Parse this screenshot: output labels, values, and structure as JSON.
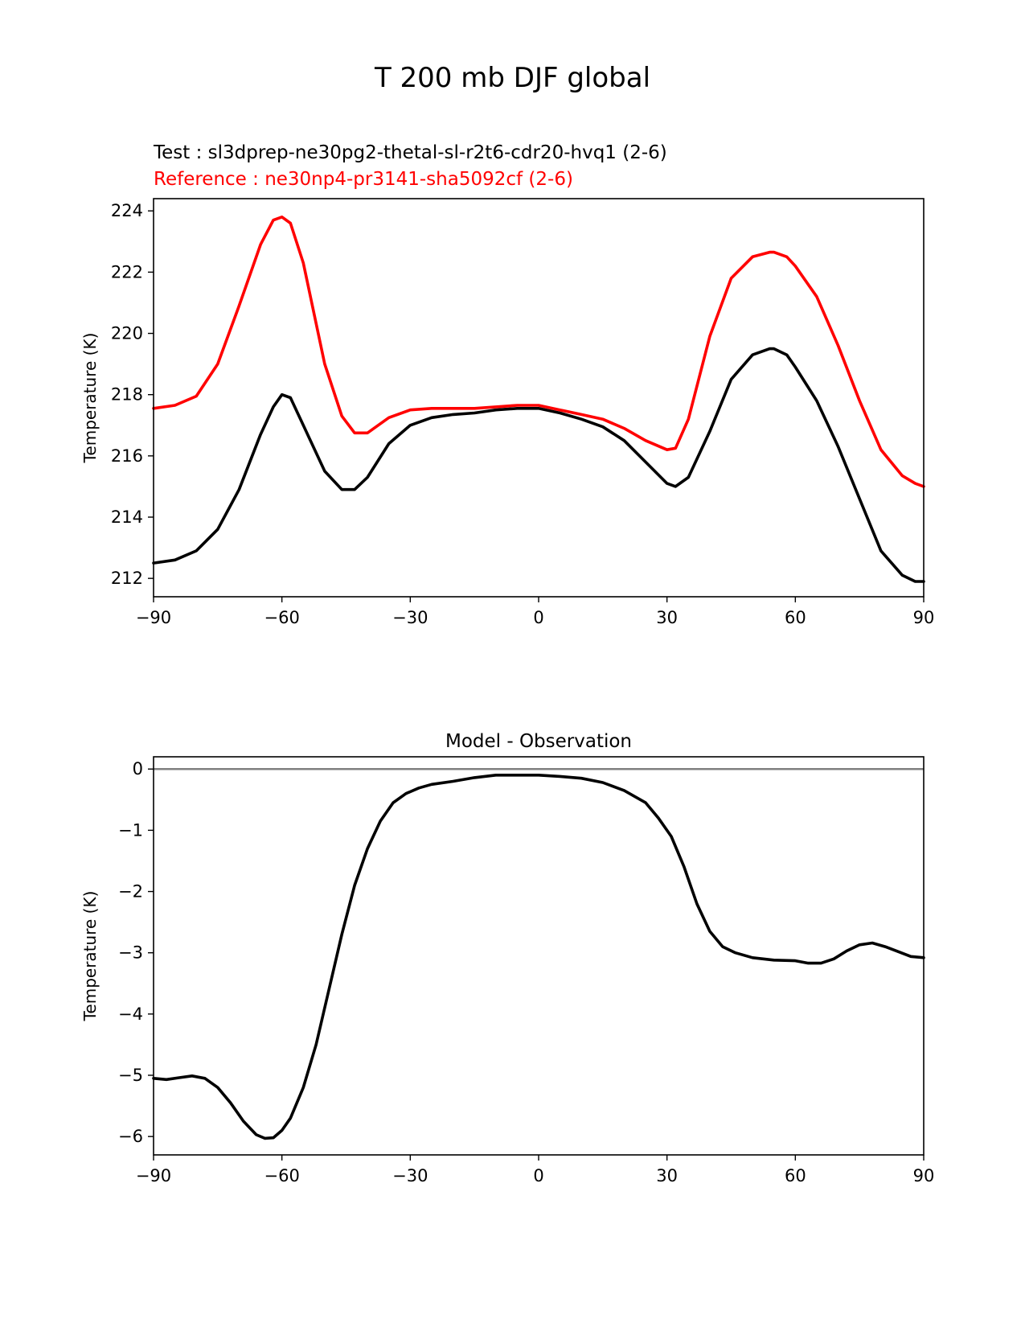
{
  "figure": {
    "title": "T 200 mb DJF global"
  },
  "chart_data": [
    {
      "type": "line",
      "title": "",
      "subtitle_lines": [
        {
          "text": "Test : sl3dprep-ne30pg2-thetal-sl-r2t6-cdr20-hvq1 (2-6)",
          "color": "#000000"
        },
        {
          "text": "Reference : ne30np4-pr3141-sha5092cf (2-6)",
          "color": "#ff0000"
        }
      ],
      "xlabel": "",
      "ylabel": "Temperature (K)",
      "xlim": [
        -90,
        90
      ],
      "ylim": [
        211.4,
        224.4
      ],
      "xticks": [
        -90,
        -60,
        -30,
        0,
        30,
        60,
        90
      ],
      "xtick_labels": [
        "−90",
        "−60",
        "−30",
        "0",
        "30",
        "60",
        "90"
      ],
      "yticks": [
        212,
        214,
        216,
        218,
        220,
        222,
        224
      ],
      "ytick_labels": [
        "212",
        "214",
        "216",
        "218",
        "220",
        "222",
        "224"
      ],
      "grid": false,
      "series": [
        {
          "name": "Test : sl3dprep-ne30pg2-thetal-sl-r2t6-cdr20-hvq1 (2-6)",
          "color": "#000000",
          "x": [
            -90,
            -85,
            -80,
            -75,
            -70,
            -65,
            -62,
            -60,
            -58,
            -55,
            -50,
            -46,
            -43,
            -40,
            -35,
            -30,
            -25,
            -20,
            -15,
            -10,
            -5,
            0,
            5,
            10,
            15,
            20,
            25,
            30,
            32,
            35,
            40,
            45,
            50,
            54,
            55,
            58,
            60,
            65,
            70,
            75,
            80,
            85,
            88,
            90
          ],
          "y": [
            212.5,
            212.6,
            212.9,
            213.6,
            214.9,
            216.7,
            217.6,
            218.0,
            217.9,
            217.0,
            215.5,
            214.9,
            214.9,
            215.3,
            216.4,
            217.0,
            217.25,
            217.35,
            217.4,
            217.5,
            217.55,
            217.55,
            217.4,
            217.2,
            216.95,
            216.5,
            215.8,
            215.1,
            215.0,
            215.3,
            216.8,
            218.5,
            219.3,
            219.5,
            219.5,
            219.3,
            218.9,
            217.8,
            216.3,
            214.6,
            212.9,
            212.1,
            211.9,
            211.9
          ]
        },
        {
          "name": "Reference : ne30np4-pr3141-sha5092cf (2-6)",
          "color": "#ff0000",
          "x": [
            -90,
            -85,
            -80,
            -75,
            -70,
            -65,
            -62,
            -60,
            -58,
            -55,
            -50,
            -46,
            -43,
            -40,
            -35,
            -30,
            -25,
            -20,
            -15,
            -10,
            -5,
            0,
            5,
            10,
            15,
            20,
            25,
            30,
            32,
            35,
            40,
            45,
            50,
            54,
            55,
            58,
            60,
            65,
            70,
            75,
            80,
            85,
            88,
            90
          ],
          "y": [
            217.55,
            217.65,
            217.95,
            219.0,
            220.9,
            222.9,
            223.7,
            223.8,
            223.6,
            222.3,
            219.0,
            217.3,
            216.75,
            216.75,
            217.25,
            217.5,
            217.55,
            217.55,
            217.55,
            217.6,
            217.65,
            217.65,
            217.5,
            217.35,
            217.2,
            216.9,
            216.5,
            216.2,
            216.25,
            217.2,
            219.9,
            221.8,
            222.5,
            222.65,
            222.65,
            222.5,
            222.2,
            221.2,
            219.6,
            217.8,
            216.2,
            215.35,
            215.1,
            215.0
          ]
        }
      ]
    },
    {
      "type": "line",
      "title": "Model - Observation",
      "xlabel": "",
      "ylabel": "Temperature (K)",
      "xlim": [
        -90,
        90
      ],
      "ylim": [
        -6.3,
        0.2
      ],
      "xticks": [
        -90,
        -60,
        -30,
        0,
        30,
        60,
        90
      ],
      "xtick_labels": [
        "−90",
        "−60",
        "−30",
        "0",
        "30",
        "60",
        "90"
      ],
      "yticks": [
        0,
        -1,
        -2,
        -3,
        -4,
        -5,
        -6
      ],
      "ytick_labels": [
        "0",
        "−1",
        "−2",
        "−3",
        "−4",
        "−5",
        "−6"
      ],
      "grid": false,
      "zero_line": {
        "y": 0,
        "color": "#808080"
      },
      "series": [
        {
          "name": "",
          "color": "#000000",
          "x": [
            -90,
            -87,
            -84,
            -81,
            -78,
            -75,
            -72,
            -69,
            -66,
            -64,
            -62,
            -60,
            -58,
            -55,
            -52,
            -49,
            -46,
            -43,
            -40,
            -37,
            -34,
            -31,
            -28,
            -25,
            -20,
            -15,
            -10,
            -5,
            0,
            5,
            10,
            15,
            20,
            25,
            28,
            31,
            34,
            37,
            40,
            43,
            46,
            50,
            55,
            60,
            63,
            66,
            69,
            72,
            75,
            78,
            81,
            84,
            87,
            90
          ],
          "y": [
            -5.05,
            -5.07,
            -5.04,
            -5.01,
            -5.05,
            -5.2,
            -5.45,
            -5.75,
            -5.97,
            -6.03,
            -6.02,
            -5.9,
            -5.7,
            -5.2,
            -4.5,
            -3.6,
            -2.7,
            -1.9,
            -1.3,
            -0.85,
            -0.55,
            -0.4,
            -0.31,
            -0.25,
            -0.2,
            -0.14,
            -0.1,
            -0.1,
            -0.1,
            -0.12,
            -0.15,
            -0.22,
            -0.35,
            -0.55,
            -0.8,
            -1.1,
            -1.6,
            -2.2,
            -2.65,
            -2.9,
            -3.0,
            -3.08,
            -3.12,
            -3.13,
            -3.17,
            -3.17,
            -3.1,
            -2.97,
            -2.87,
            -2.84,
            -2.9,
            -2.98,
            -3.06,
            -3.08
          ]
        }
      ]
    }
  ]
}
